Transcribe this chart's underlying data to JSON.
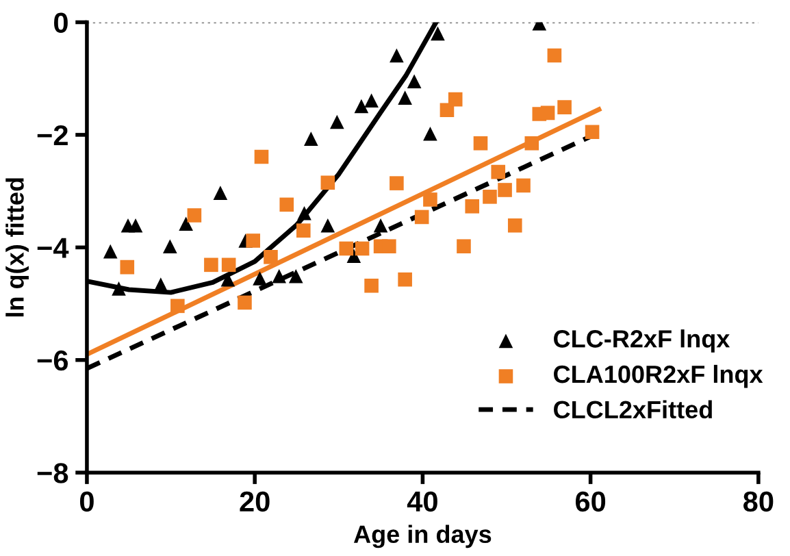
{
  "chart_data": {
    "type": "scatter",
    "xlabel": "Age in days",
    "ylabel": "ln q(x) fitted",
    "xlim": [
      0,
      80
    ],
    "ylim": [
      -8,
      0
    ],
    "xticks": [
      0,
      20,
      40,
      60,
      80
    ],
    "yticks": [
      0,
      -2,
      -4,
      -6,
      -8
    ],
    "grid": false,
    "legend": "bottom right",
    "ref_lines": [
      {
        "axis": "y",
        "value": 0,
        "color": "#888888",
        "line_style": "dotted"
      }
    ],
    "series": [
      {
        "name": "CLC-R2xF lnqx",
        "marker": "triangle",
        "color": "#000000",
        "x": [
          2.8,
          3.8,
          4.9,
          5.8,
          8.8,
          9.9,
          11.8,
          15.9,
          16.8,
          18.9,
          20.6,
          22.9,
          24.9,
          25.9,
          26.7,
          28.7,
          29.8,
          31.8,
          32.7,
          33.9,
          35.0,
          36.9,
          37.9,
          39.0,
          40.9,
          41.8,
          53.9
        ],
        "values": [
          -4.07,
          -4.73,
          -3.61,
          -3.61,
          -4.66,
          -3.98,
          -3.58,
          -3.03,
          -4.57,
          -3.88,
          -4.55,
          -4.51,
          -4.51,
          -3.39,
          -2.07,
          -3.61,
          -1.77,
          -4.15,
          -1.49,
          -1.39,
          -3.61,
          -0.59,
          -1.34,
          -1.05,
          -1.98,
          -0.2,
          -0.02
        ]
      },
      {
        "name": "CLA100R2xF lnqx",
        "marker": "square",
        "color": "#f07f24",
        "x": [
          4.8,
          10.8,
          12.8,
          14.8,
          16.9,
          18.8,
          19.8,
          20.8,
          21.9,
          23.8,
          25.8,
          28.7,
          30.9,
          32.8,
          33.9,
          35.0,
          36.0,
          36.9,
          37.9,
          39.9,
          40.9,
          42.9,
          43.9,
          44.9,
          45.9,
          46.9,
          48.0,
          49.0,
          49.8,
          51.0,
          52.0,
          53.0,
          53.9,
          54.9,
          55.7,
          56.9,
          60.2
        ],
        "values": [
          -4.35,
          -5.04,
          -3.43,
          -4.31,
          -4.31,
          -4.98,
          -3.88,
          -2.39,
          -4.17,
          -3.24,
          -3.7,
          -2.85,
          -4.02,
          -4.02,
          -4.68,
          -3.98,
          -3.98,
          -2.86,
          -4.57,
          -3.46,
          -3.15,
          -1.56,
          -1.37,
          -3.98,
          -3.27,
          -2.15,
          -3.1,
          -2.66,
          -2.98,
          -3.61,
          -2.9,
          -2.15,
          -1.63,
          -1.61,
          -0.59,
          -1.51,
          -1.95
        ]
      },
      {
        "name": "CLCL2xFitted",
        "type": "line",
        "line_style": "dashed",
        "marker": "none",
        "color": "#000000",
        "x": [
          0,
          60
        ],
        "values": [
          -6.15,
          -2.03
        ]
      },
      {
        "type": "line",
        "line_style": "solid",
        "marker": "none",
        "color": "#000000",
        "x": [
          0,
          5,
          10,
          15,
          20,
          25,
          30,
          35,
          38,
          41.6
        ],
        "values": [
          -4.6,
          -4.75,
          -4.8,
          -4.62,
          -4.25,
          -3.6,
          -2.7,
          -1.6,
          -0.95,
          0
        ]
      },
      {
        "type": "line",
        "line_style": "solid",
        "marker": "none",
        "color": "#f07f24",
        "x": [
          0,
          61
        ],
        "values": [
          -5.9,
          -1.55
        ]
      }
    ]
  }
}
